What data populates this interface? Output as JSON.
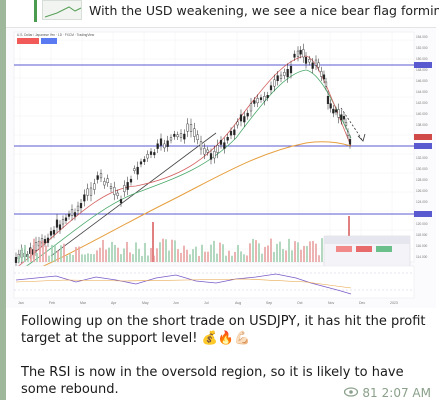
{
  "reply": {
    "text": "With the USD weakening, we see a nice bear flag forming ..."
  },
  "chart": {
    "title": "U.S. Dollar / Japanese Yen · 1D · FXCM · TradingView",
    "price_labels": [
      "154.000",
      "152.000",
      "150.000",
      "148.000",
      "146.000",
      "144.000",
      "142.000",
      "140.000",
      "138.000",
      "136.000",
      "134.000",
      "132.000",
      "130.000",
      "128.000",
      "126.000",
      "124.000",
      "122.000",
      "120.000",
      "118.000",
      "116.000",
      "114.000"
    ],
    "month_labels": [
      "Jan",
      "Feb",
      "Mar",
      "Apr",
      "May",
      "Jun",
      "Jul",
      "Aug",
      "Sep",
      "Oct",
      "Nov",
      "Dec",
      "2023"
    ]
  },
  "message": {
    "paragraph1": "Following up on the short trade on USDJPY, it has hit the profit target at the support level! 💰🔥💪🏻",
    "paragraph2": "The RSI is now in the oversold region, so it is likely to have some rebound.",
    "views": "81",
    "time": "2:07 AM"
  },
  "icons": {
    "eye": "eye-icon",
    "thumb": "chart-thumbnail"
  }
}
